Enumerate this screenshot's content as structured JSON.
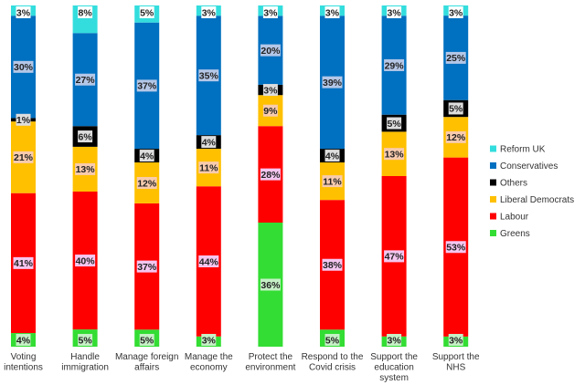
{
  "chart_data": {
    "type": "bar",
    "stacked": true,
    "percent_stacked": true,
    "title": "",
    "xlabel": "",
    "ylabel": "",
    "ylim": [
      0,
      100
    ],
    "grid": false,
    "legend_position": "right",
    "categories": [
      [
        "Voting",
        "intentions"
      ],
      [
        "Handle",
        "immigration"
      ],
      [
        "Manage foreign",
        "affairs"
      ],
      [
        "Manage the",
        "economy"
      ],
      [
        "Protect the",
        "environment"
      ],
      [
        "Respond to the",
        "Covid crisis"
      ],
      [
        "Support the",
        "education",
        "system"
      ],
      [
        "Support the",
        "NHS"
      ]
    ],
    "series": [
      {
        "name": "Greens",
        "color": "#33dd33",
        "values": [
          4,
          5,
          5,
          3,
          36,
          5,
          3,
          3
        ]
      },
      {
        "name": "Labour",
        "color": "#ff0000",
        "values": [
          41,
          40,
          37,
          44,
          28,
          38,
          47,
          53
        ]
      },
      {
        "name": "Liberal Democrats",
        "color": "#ffc000",
        "values": [
          21,
          13,
          12,
          11,
          9,
          11,
          13,
          12
        ]
      },
      {
        "name": "Others",
        "color": "#000000",
        "values": [
          1,
          6,
          4,
          4,
          3,
          4,
          5,
          5
        ]
      },
      {
        "name": "Conservatives",
        "color": "#0070c0",
        "values": [
          30,
          27,
          37,
          35,
          20,
          39,
          29,
          25
        ]
      },
      {
        "name": "Reform UK",
        "color": "#33dddd",
        "values": [
          3,
          8,
          5,
          3,
          3,
          3,
          3,
          3
        ]
      }
    ],
    "data_labels": [
      [
        "4%",
        "41%",
        "21%",
        "1%",
        "30%",
        "3%"
      ],
      [
        "5%",
        "40%",
        "13%",
        "6%",
        "27%",
        "8%"
      ],
      [
        "5%",
        "37%",
        "12%",
        "4%",
        "37%",
        "5%"
      ],
      [
        "3%",
        "44%",
        "11%",
        "4%",
        "35%",
        "3%"
      ],
      [
        "36%",
        "28%",
        "9%",
        "3%",
        "20%",
        "3%"
      ],
      [
        "5%",
        "38%",
        "11%",
        "4%",
        "39%",
        "3%"
      ],
      [
        "3%",
        "47%",
        "13%",
        "5%",
        "29%",
        "3%"
      ],
      [
        "3%",
        "53%",
        "12%",
        "5%",
        "25%",
        "3%"
      ]
    ],
    "legend": [
      "Reform UK",
      "Conservatives",
      "Others",
      "Liberal Democrats",
      "Labour",
      "Greens"
    ]
  }
}
